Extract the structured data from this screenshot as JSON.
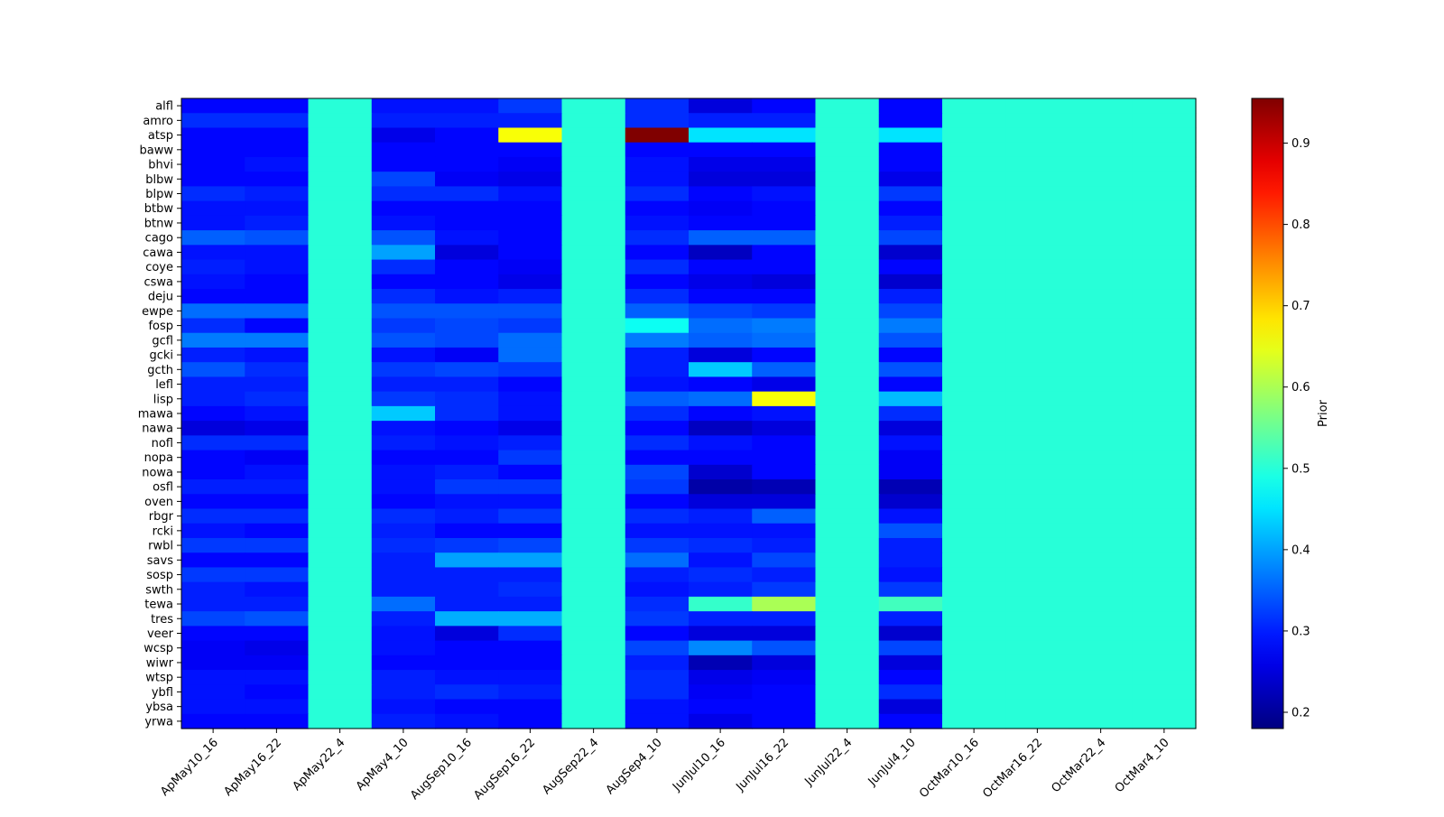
{
  "chart_data": {
    "type": "heatmap",
    "title": "",
    "xlabel": "",
    "ylabel": "",
    "colormap": "jet",
    "colorbar": {
      "label": "Prior",
      "range": [
        0.18,
        0.955
      ],
      "ticks": [
        0.2,
        0.3,
        0.4,
        0.5,
        0.6,
        0.7,
        0.8,
        0.9
      ],
      "tick_labels": [
        "0.2",
        "0.3",
        "0.4",
        "0.5",
        "0.6",
        "0.7",
        "0.8",
        "0.9"
      ]
    },
    "x_categories": [
      "ApMay10_16",
      "ApMay16_22",
      "ApMay22_4",
      "ApMay4_10",
      "AugSep10_16",
      "AugSep16_22",
      "AugSep22_4",
      "AugSep4_10",
      "JunJul10_16",
      "JunJul16_22",
      "JunJul22_4",
      "JunJul4_10",
      "OctMar10_16",
      "OctMar16_22",
      "OctMar22_4",
      "OctMar4_10"
    ],
    "y_categories": [
      "alfl",
      "amro",
      "atsp",
      "baww",
      "bhvi",
      "blbw",
      "blpw",
      "btbw",
      "btnw",
      "cago",
      "cawa",
      "coye",
      "cswa",
      "deju",
      "ewpe",
      "fosp",
      "gcfl",
      "gcki",
      "gcth",
      "lefl",
      "lisp",
      "mawa",
      "nawa",
      "nofl",
      "nopa",
      "nowa",
      "osfl",
      "oven",
      "rbgr",
      "rcki",
      "rwbl",
      "savs",
      "sosp",
      "swth",
      "tewa",
      "tres",
      "veer",
      "wcsp",
      "wiwr",
      "wtsp",
      "ybfl",
      "ybsa",
      "yrwa"
    ],
    "values": [
      [
        0.28,
        0.28,
        0.5,
        0.29,
        0.29,
        0.32,
        0.5,
        0.31,
        0.25,
        0.28,
        0.5,
        0.28,
        0.5,
        0.5,
        0.5,
        0.5
      ],
      [
        0.31,
        0.31,
        0.5,
        0.3,
        0.3,
        0.3,
        0.5,
        0.31,
        0.3,
        0.3,
        0.5,
        0.28,
        0.5,
        0.5,
        0.5,
        0.5
      ],
      [
        0.28,
        0.28,
        0.5,
        0.26,
        0.28,
        0.66,
        0.5,
        0.955,
        0.45,
        0.45,
        0.5,
        0.45,
        0.5,
        0.5,
        0.5,
        0.5
      ],
      [
        0.28,
        0.28,
        0.5,
        0.28,
        0.28,
        0.28,
        0.5,
        0.28,
        0.28,
        0.28,
        0.5,
        0.28,
        0.5,
        0.5,
        0.5,
        0.5
      ],
      [
        0.28,
        0.29,
        0.5,
        0.28,
        0.28,
        0.27,
        0.5,
        0.29,
        0.26,
        0.26,
        0.5,
        0.28,
        0.5,
        0.5,
        0.5,
        0.5
      ],
      [
        0.28,
        0.28,
        0.5,
        0.33,
        0.27,
        0.26,
        0.5,
        0.29,
        0.25,
        0.25,
        0.5,
        0.26,
        0.5,
        0.5,
        0.5,
        0.5
      ],
      [
        0.31,
        0.3,
        0.5,
        0.31,
        0.31,
        0.29,
        0.5,
        0.31,
        0.28,
        0.29,
        0.5,
        0.32,
        0.5,
        0.5,
        0.5,
        0.5
      ],
      [
        0.29,
        0.29,
        0.5,
        0.28,
        0.28,
        0.28,
        0.5,
        0.28,
        0.27,
        0.28,
        0.5,
        0.28,
        0.5,
        0.5,
        0.5,
        0.5
      ],
      [
        0.29,
        0.3,
        0.5,
        0.29,
        0.28,
        0.28,
        0.5,
        0.29,
        0.28,
        0.28,
        0.5,
        0.3,
        0.5,
        0.5,
        0.5,
        0.5
      ],
      [
        0.35,
        0.34,
        0.5,
        0.34,
        0.29,
        0.28,
        0.5,
        0.31,
        0.35,
        0.35,
        0.5,
        0.33,
        0.5,
        0.5,
        0.5,
        0.5
      ],
      [
        0.29,
        0.29,
        0.5,
        0.4,
        0.25,
        0.28,
        0.5,
        0.28,
        0.23,
        0.28,
        0.5,
        0.24,
        0.5,
        0.5,
        0.5,
        0.5
      ],
      [
        0.3,
        0.29,
        0.5,
        0.31,
        0.28,
        0.27,
        0.5,
        0.31,
        0.28,
        0.28,
        0.5,
        0.28,
        0.5,
        0.5,
        0.5,
        0.5
      ],
      [
        0.29,
        0.28,
        0.5,
        0.28,
        0.28,
        0.26,
        0.5,
        0.28,
        0.26,
        0.25,
        0.5,
        0.24,
        0.5,
        0.5,
        0.5,
        0.5
      ],
      [
        0.28,
        0.28,
        0.5,
        0.31,
        0.29,
        0.3,
        0.5,
        0.31,
        0.28,
        0.28,
        0.5,
        0.3,
        0.5,
        0.5,
        0.5,
        0.5
      ],
      [
        0.36,
        0.36,
        0.5,
        0.34,
        0.34,
        0.34,
        0.5,
        0.35,
        0.33,
        0.32,
        0.5,
        0.33,
        0.5,
        0.5,
        0.5,
        0.5
      ],
      [
        0.31,
        0.28,
        0.5,
        0.32,
        0.33,
        0.32,
        0.5,
        0.48,
        0.36,
        0.37,
        0.5,
        0.37,
        0.5,
        0.5,
        0.5,
        0.5
      ],
      [
        0.37,
        0.37,
        0.5,
        0.34,
        0.33,
        0.36,
        0.5,
        0.37,
        0.35,
        0.36,
        0.5,
        0.34,
        0.5,
        0.5,
        0.5,
        0.5
      ],
      [
        0.3,
        0.29,
        0.5,
        0.29,
        0.27,
        0.36,
        0.5,
        0.3,
        0.25,
        0.28,
        0.5,
        0.28,
        0.5,
        0.5,
        0.5,
        0.5
      ],
      [
        0.34,
        0.31,
        0.5,
        0.32,
        0.33,
        0.32,
        0.5,
        0.3,
        0.43,
        0.35,
        0.5,
        0.34,
        0.5,
        0.5,
        0.5,
        0.5
      ],
      [
        0.3,
        0.3,
        0.5,
        0.3,
        0.3,
        0.28,
        0.5,
        0.29,
        0.28,
        0.26,
        0.5,
        0.28,
        0.5,
        0.5,
        0.5,
        0.5
      ],
      [
        0.3,
        0.31,
        0.5,
        0.32,
        0.31,
        0.29,
        0.5,
        0.35,
        0.36,
        0.66,
        0.5,
        0.42,
        0.5,
        0.5,
        0.5,
        0.5
      ],
      [
        0.28,
        0.29,
        0.5,
        0.43,
        0.31,
        0.29,
        0.5,
        0.31,
        0.28,
        0.29,
        0.5,
        0.31,
        0.5,
        0.5,
        0.5,
        0.5
      ],
      [
        0.25,
        0.26,
        0.5,
        0.29,
        0.28,
        0.26,
        0.5,
        0.28,
        0.23,
        0.25,
        0.5,
        0.25,
        0.5,
        0.5,
        0.5,
        0.5
      ],
      [
        0.31,
        0.31,
        0.5,
        0.3,
        0.29,
        0.3,
        0.5,
        0.31,
        0.29,
        0.28,
        0.5,
        0.29,
        0.5,
        0.5,
        0.5,
        0.5
      ],
      [
        0.28,
        0.27,
        0.5,
        0.28,
        0.28,
        0.32,
        0.5,
        0.28,
        0.28,
        0.28,
        0.5,
        0.27,
        0.5,
        0.5,
        0.5,
        0.5
      ],
      [
        0.28,
        0.29,
        0.5,
        0.29,
        0.3,
        0.28,
        0.5,
        0.33,
        0.24,
        0.28,
        0.5,
        0.27,
        0.5,
        0.5,
        0.5,
        0.5
      ],
      [
        0.3,
        0.3,
        0.5,
        0.29,
        0.32,
        0.32,
        0.5,
        0.32,
        0.21,
        0.22,
        0.5,
        0.22,
        0.5,
        0.5,
        0.5,
        0.5
      ],
      [
        0.28,
        0.28,
        0.5,
        0.28,
        0.29,
        0.29,
        0.5,
        0.28,
        0.25,
        0.25,
        0.5,
        0.24,
        0.5,
        0.5,
        0.5,
        0.5
      ],
      [
        0.31,
        0.31,
        0.5,
        0.31,
        0.3,
        0.32,
        0.5,
        0.31,
        0.3,
        0.35,
        0.5,
        0.29,
        0.5,
        0.5,
        0.5,
        0.5
      ],
      [
        0.29,
        0.28,
        0.5,
        0.3,
        0.28,
        0.28,
        0.5,
        0.29,
        0.29,
        0.29,
        0.5,
        0.34,
        0.5,
        0.5,
        0.5,
        0.5
      ],
      [
        0.32,
        0.32,
        0.5,
        0.31,
        0.32,
        0.33,
        0.5,
        0.32,
        0.31,
        0.3,
        0.5,
        0.3,
        0.5,
        0.5,
        0.5,
        0.5
      ],
      [
        0.28,
        0.28,
        0.5,
        0.3,
        0.4,
        0.4,
        0.5,
        0.36,
        0.29,
        0.33,
        0.5,
        0.3,
        0.5,
        0.5,
        0.5,
        0.5
      ],
      [
        0.32,
        0.32,
        0.5,
        0.3,
        0.3,
        0.3,
        0.5,
        0.3,
        0.31,
        0.3,
        0.5,
        0.29,
        0.5,
        0.5,
        0.5,
        0.5
      ],
      [
        0.3,
        0.29,
        0.5,
        0.3,
        0.3,
        0.31,
        0.5,
        0.29,
        0.3,
        0.32,
        0.5,
        0.32,
        0.5,
        0.5,
        0.5,
        0.5
      ],
      [
        0.3,
        0.3,
        0.5,
        0.36,
        0.3,
        0.3,
        0.5,
        0.31,
        0.51,
        0.6,
        0.5,
        0.52,
        0.5,
        0.5,
        0.5,
        0.5
      ],
      [
        0.33,
        0.34,
        0.5,
        0.3,
        0.41,
        0.41,
        0.5,
        0.32,
        0.3,
        0.3,
        0.5,
        0.3,
        0.5,
        0.5,
        0.5,
        0.5
      ],
      [
        0.28,
        0.28,
        0.5,
        0.29,
        0.25,
        0.31,
        0.5,
        0.28,
        0.25,
        0.25,
        0.5,
        0.24,
        0.5,
        0.5,
        0.5,
        0.5
      ],
      [
        0.27,
        0.26,
        0.5,
        0.29,
        0.28,
        0.28,
        0.5,
        0.33,
        0.38,
        0.34,
        0.5,
        0.33,
        0.5,
        0.5,
        0.5,
        0.5
      ],
      [
        0.27,
        0.27,
        0.5,
        0.28,
        0.28,
        0.28,
        0.5,
        0.3,
        0.22,
        0.25,
        0.5,
        0.25,
        0.5,
        0.5,
        0.5,
        0.5
      ],
      [
        0.29,
        0.29,
        0.5,
        0.3,
        0.29,
        0.29,
        0.5,
        0.31,
        0.26,
        0.27,
        0.5,
        0.28,
        0.5,
        0.5,
        0.5,
        0.5
      ],
      [
        0.29,
        0.28,
        0.5,
        0.3,
        0.31,
        0.3,
        0.5,
        0.31,
        0.27,
        0.28,
        0.5,
        0.31,
        0.5,
        0.5,
        0.5,
        0.5
      ],
      [
        0.29,
        0.29,
        0.5,
        0.29,
        0.28,
        0.28,
        0.5,
        0.29,
        0.28,
        0.28,
        0.5,
        0.25,
        0.5,
        0.5,
        0.5,
        0.5
      ],
      [
        0.28,
        0.28,
        0.5,
        0.3,
        0.29,
        0.28,
        0.5,
        0.29,
        0.26,
        0.28,
        0.5,
        0.28,
        0.5,
        0.5,
        0.5,
        0.5
      ]
    ]
  }
}
